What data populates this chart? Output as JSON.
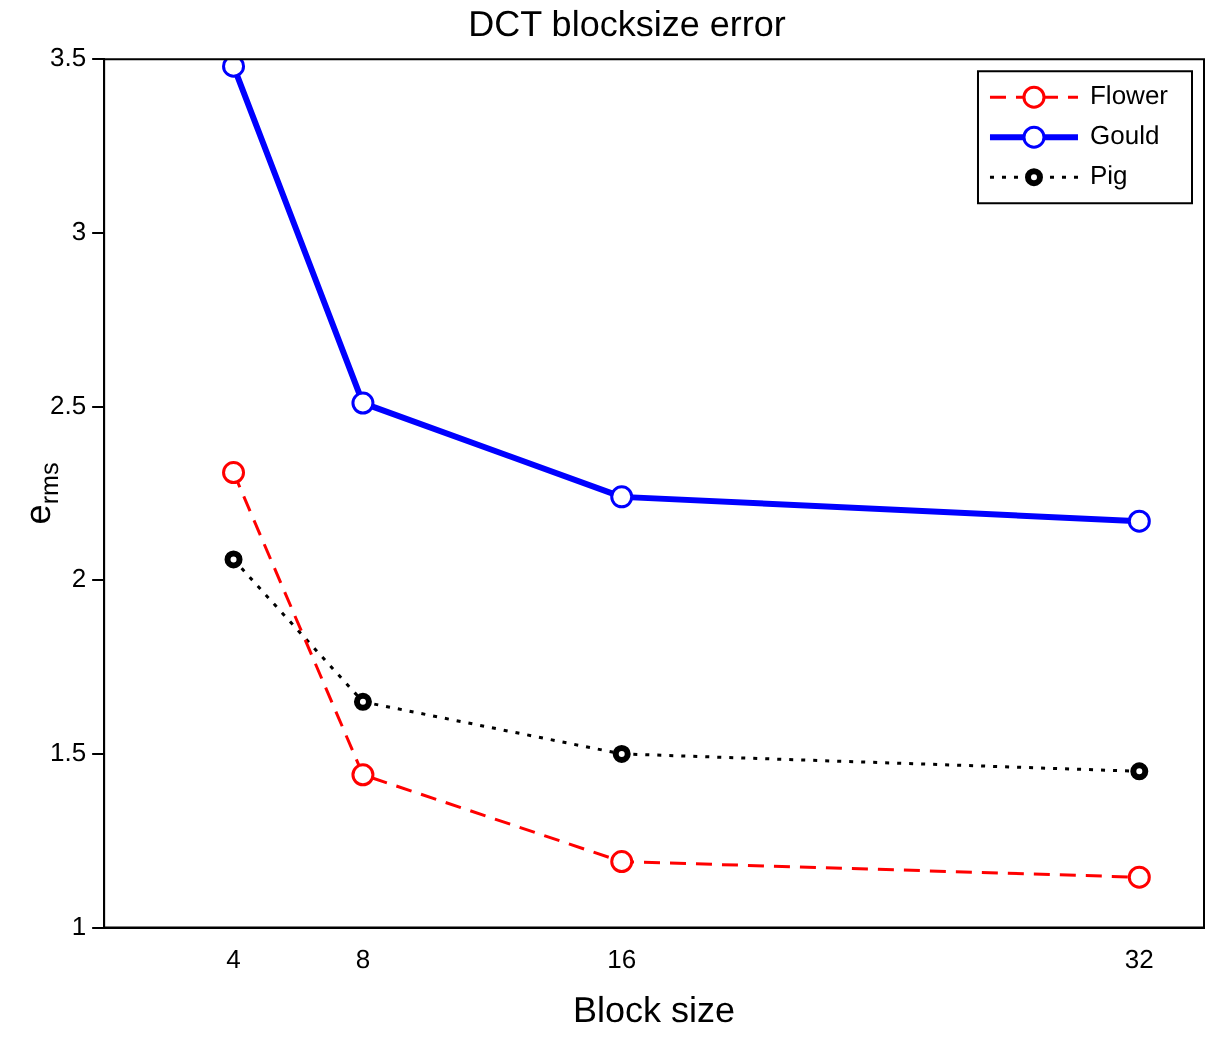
{
  "chart_data": {
    "type": "line",
    "title": "DCT blocksize error",
    "xlabel": "Block size",
    "ylabel": "e$_{rms}$",
    "x": [
      4,
      8,
      16,
      32
    ],
    "series": [
      {
        "name": "Flower",
        "color": "#ff0000",
        "values": [
          2.31,
          1.44,
          1.19,
          1.145
        ],
        "marker": "circle",
        "line_style": "dashed"
      },
      {
        "name": "Gould",
        "color": "#0000ff",
        "values": [
          3.48,
          2.51,
          2.24,
          2.17
        ],
        "marker": "circle",
        "line_style": "solid"
      },
      {
        "name": "Pig",
        "color": "#000000",
        "values": [
          2.06,
          1.65,
          1.5,
          1.45
        ],
        "marker": "circle",
        "line_style": "dotted"
      }
    ],
    "xlim": [
      0,
      34
    ],
    "xticks": [
      4,
      8,
      16,
      32
    ],
    "ylim": [
      1,
      3.5
    ],
    "yticks": [
      1,
      1.5,
      2,
      2.5,
      3,
      3.5
    ],
    "grid": false,
    "legend": "top right"
  }
}
